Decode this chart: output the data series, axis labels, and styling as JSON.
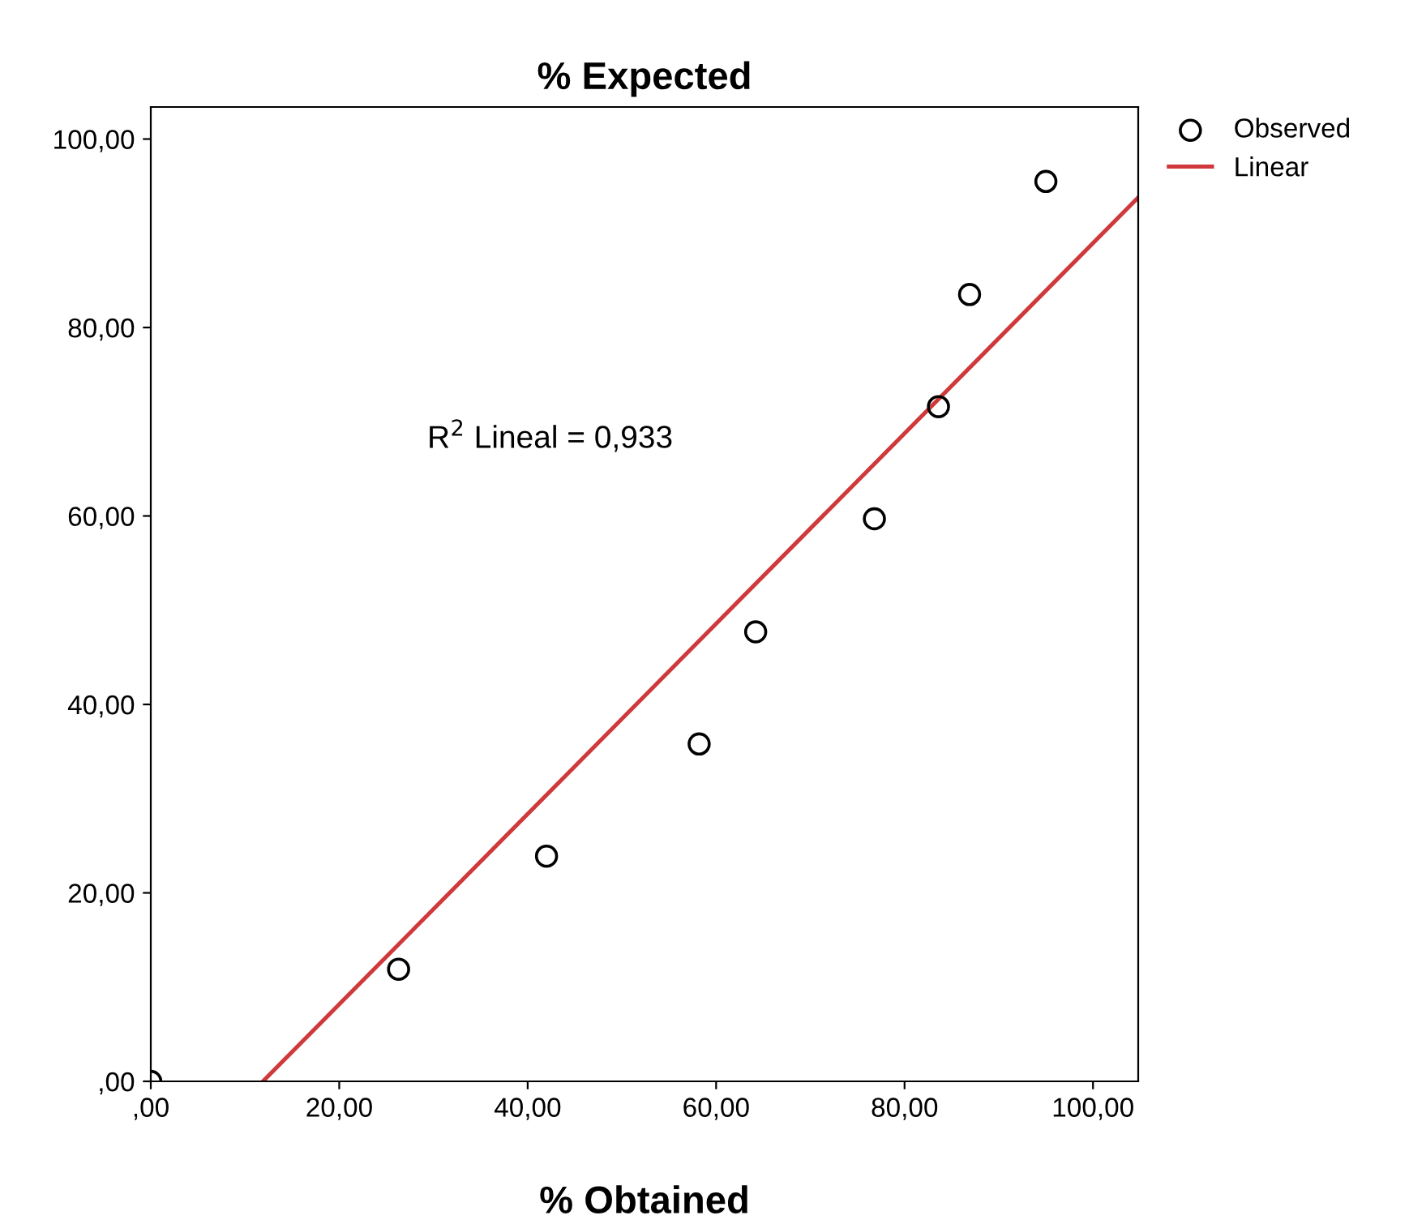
{
  "chart_data": {
    "type": "scatter",
    "title": "% Expected",
    "xlabel": "% Obtained",
    "xlim": [
      0,
      104.8
    ],
    "ylim": [
      0,
      103.4
    ],
    "xticks": [
      {
        "value": 0,
        "label": ",00"
      },
      {
        "value": 20,
        "label": "20,00"
      },
      {
        "value": 40,
        "label": "40,00"
      },
      {
        "value": 60,
        "label": "60,00"
      },
      {
        "value": 80,
        "label": "80,00"
      },
      {
        "value": 100,
        "label": "100,00"
      }
    ],
    "yticks": [
      {
        "value": 0,
        "label": ",00"
      },
      {
        "value": 20,
        "label": "20,00"
      },
      {
        "value": 40,
        "label": "40,00"
      },
      {
        "value": 60,
        "label": "60,00"
      },
      {
        "value": 80,
        "label": "80,00"
      },
      {
        "value": 100,
        "label": "100,00"
      }
    ],
    "grid": false,
    "legend": "top right",
    "annotations": [
      "R$^{2}$ Lineal = 0,933"
    ],
    "series": [
      {
        "name": "Observed",
        "marker": "circle",
        "color": "#000000",
        "x": [
          0,
          26.3,
          42.0,
          58.2,
          64.2,
          76.8,
          83.6,
          86.9,
          95.0
        ],
        "values": [
          0,
          11.9,
          23.9,
          35.8,
          47.7,
          59.7,
          71.6,
          83.5,
          95.5
        ]
      },
      {
        "name": "Linear",
        "type": "line",
        "color": "#d0393b",
        "line_style": "solid",
        "x": [
          11.9,
          104.8
        ],
        "values": [
          0,
          93.8
        ]
      }
    ]
  }
}
